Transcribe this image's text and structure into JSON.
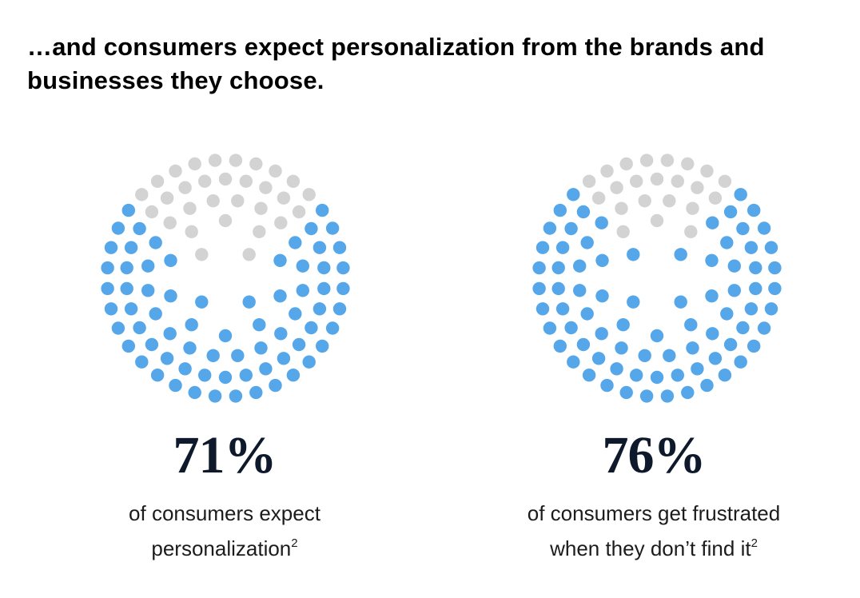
{
  "headline": "…and consumers expect personalization from the brands and businesses they choose.",
  "colors": {
    "filled": "#55a7ea",
    "empty": "#d3d3d3",
    "stat_text": "#0e1a2b"
  },
  "chart_data": [
    {
      "type": "dot-proportion",
      "value_percent": 71,
      "value_label": "71%",
      "caption_line1": "of consumers expect",
      "caption_line2": "personalization",
      "footnote": "2"
    },
    {
      "type": "dot-proportion",
      "value_percent": 76,
      "value_label": "76%",
      "caption_line1": "of consumers get frustrated",
      "caption_line2": "when they don’t find it",
      "footnote": "2"
    }
  ]
}
